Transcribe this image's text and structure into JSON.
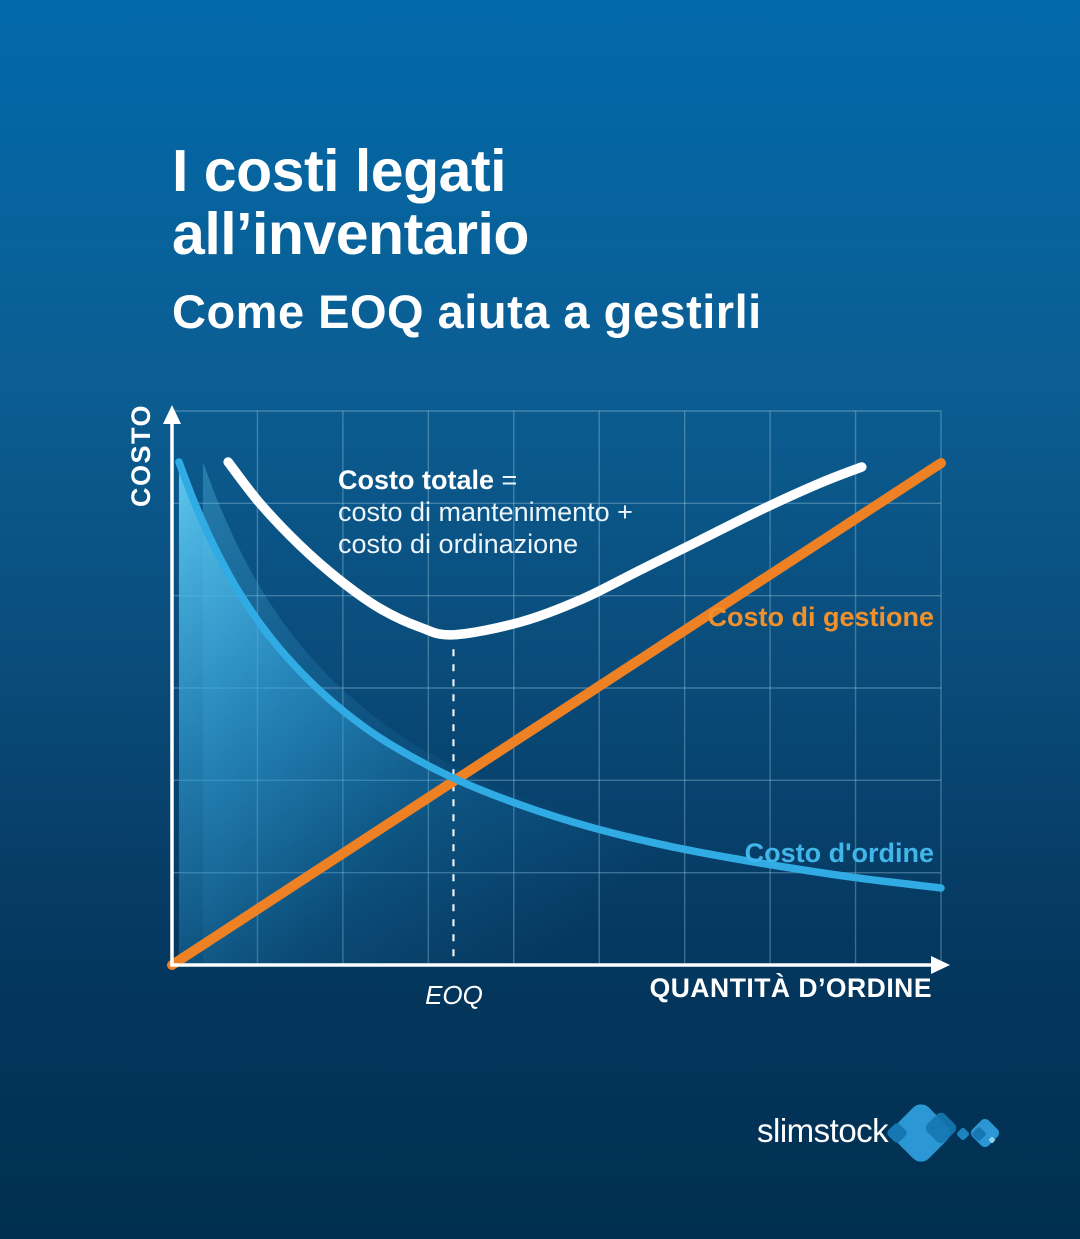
{
  "page": {
    "title_line1": "I costi legati",
    "title_line2": "all’inventario",
    "subtitle": "Come EOQ aiuta a gestirli"
  },
  "colors": {
    "bg_top": "#0169aa",
    "bg_bottom": "#002f4f",
    "grid": "rgba(167,209,233,0.35)",
    "axis": "#ffffff",
    "gestione_label": "#f0912e",
    "ordine_label": "#41b6ea",
    "fill_area": "#4cbaea"
  },
  "chart_data": {
    "type": "line",
    "xlabel": "QUANTITÀ D’ORDINE",
    "ylabel": "COSTO",
    "eoq_label": "EOQ",
    "eoq_x": 0.366,
    "eoq_dash_top": 0.57,
    "grid": {
      "cols": 9,
      "rows": 6
    },
    "axis_ranges": {
      "x": [
        0,
        1
      ],
      "y": [
        0,
        1
      ],
      "units": "normalized (conceptual chart, no numeric ticks)"
    },
    "legend_position": "labels beside lines",
    "annotation": {
      "bold": "Costo totale",
      "bold_suffix": " =",
      "line2": "costo di mantenimento +",
      "line3": "costo di ordinazione"
    },
    "series": [
      {
        "name": "Costo totale",
        "color": "#ffffff",
        "width": 9.5,
        "points": [
          [
            0.073,
            0.908
          ],
          [
            0.114,
            0.834
          ],
          [
            0.166,
            0.758
          ],
          [
            0.218,
            0.695
          ],
          [
            0.27,
            0.644
          ],
          [
            0.322,
            0.61
          ],
          [
            0.366,
            0.596
          ],
          [
            0.453,
            0.619
          ],
          [
            0.531,
            0.659
          ],
          [
            0.609,
            0.713
          ],
          [
            0.687,
            0.767
          ],
          [
            0.765,
            0.821
          ],
          [
            0.843,
            0.87
          ],
          [
            0.897,
            0.899
          ]
        ]
      },
      {
        "name": "Costo di gestione",
        "color": "#ef8125",
        "width": 10,
        "points": [
          [
            0.0,
            0.0
          ],
          [
            1.0,
            0.906
          ]
        ]
      },
      {
        "name": "Costo d'ordine",
        "color": "#31abe3",
        "width": 7.5,
        "area": true,
        "points": [
          [
            0.009,
            0.908
          ],
          [
            0.03,
            0.832
          ],
          [
            0.056,
            0.752
          ],
          [
            0.088,
            0.671
          ],
          [
            0.127,
            0.593
          ],
          [
            0.173,
            0.521
          ],
          [
            0.225,
            0.456
          ],
          [
            0.283,
            0.399
          ],
          [
            0.365,
            0.338
          ],
          [
            0.453,
            0.289
          ],
          [
            0.544,
            0.249
          ],
          [
            0.648,
            0.214
          ],
          [
            0.765,
            0.184
          ],
          [
            0.882,
            0.159
          ],
          [
            1.0,
            0.139
          ]
        ]
      }
    ]
  },
  "brand": {
    "logo_text": "slimstock",
    "logo_color_primary": "#2b98d5",
    "logo_color_dark": "#1677b2",
    "logo_color_mid": "#1d83c1",
    "logo_color_bright": "#8ed4f2"
  }
}
